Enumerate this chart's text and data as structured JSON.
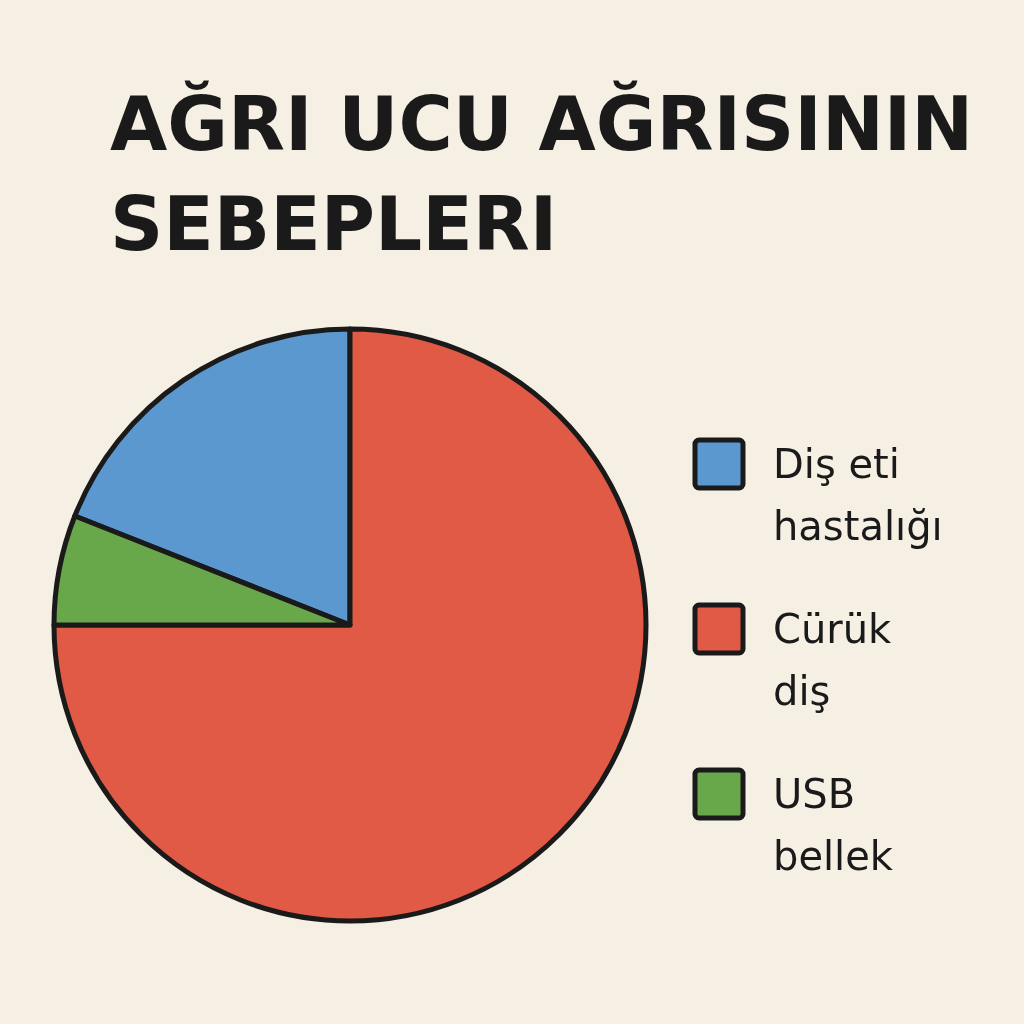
{
  "chart_data": {
    "type": "pie",
    "title": "AĞRI UCU AĞRISININ SEBEPLERI",
    "categories": [
      "Diş eti hastalığı",
      "Cürük diş",
      "USB bellek"
    ],
    "values": [
      19,
      75,
      6
    ],
    "colors": [
      "#5a98cf",
      "#e05a45",
      "#68a84a"
    ],
    "legend": "right"
  }
}
